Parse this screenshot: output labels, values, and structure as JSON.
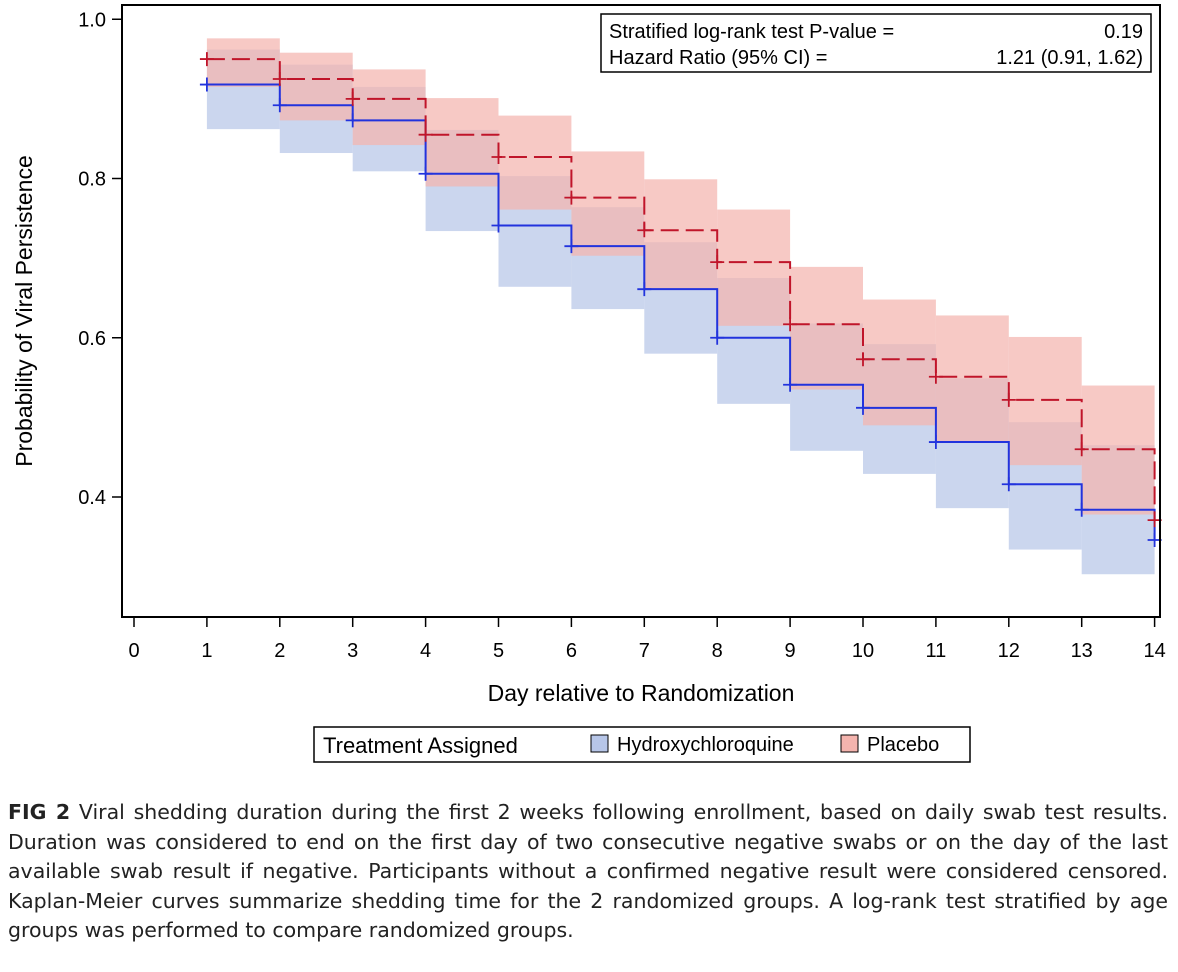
{
  "chart_data": {
    "type": "line",
    "subtype": "kaplan-meier-step",
    "xlabel": "Day relative to Randomization",
    "ylabel": "Probability of Viral Persistence",
    "xlim": [
      0,
      14
    ],
    "ylim": [
      0.25,
      1.0
    ],
    "xticks": [
      0,
      1,
      2,
      3,
      4,
      5,
      6,
      7,
      8,
      9,
      10,
      11,
      12,
      13,
      14
    ],
    "yticks": [
      0.4,
      0.6,
      0.8,
      1.0
    ],
    "ytick_labels": [
      "0.4",
      "0.6",
      "0.8",
      "1.0"
    ],
    "grid": false,
    "series": [
      {
        "name": "Hydroxychloroquine",
        "color": "#2233dd",
        "band_color": "#b7c6e8",
        "line_style": "solid",
        "x": [
          1,
          2,
          3,
          4,
          5,
          6,
          7,
          8,
          9,
          10,
          11,
          12,
          13,
          14
        ],
        "survival": [
          0.918,
          0.892,
          0.873,
          0.806,
          0.741,
          0.715,
          0.661,
          0.6,
          0.541,
          0.512,
          0.469,
          0.416,
          0.384,
          0.346
        ],
        "ci_lower": [
          0.862,
          0.832,
          0.809,
          0.734,
          0.664,
          0.636,
          0.58,
          0.517,
          0.458,
          0.429,
          0.386,
          0.334,
          0.303,
          0.262
        ],
        "ci_upper": [
          0.962,
          0.943,
          0.915,
          0.861,
          0.803,
          0.764,
          0.72,
          0.675,
          0.618,
          0.592,
          0.549,
          0.494,
          0.465,
          0.43
        ]
      },
      {
        "name": "Placebo",
        "color": "#c0152a",
        "band_color": "#f4b4ae",
        "line_style": "dashed",
        "x": [
          1,
          2,
          3,
          4,
          5,
          6,
          7,
          8,
          9,
          10,
          11,
          12,
          13,
          14
        ],
        "survival": [
          0.95,
          0.925,
          0.9,
          0.855,
          0.827,
          0.776,
          0.735,
          0.695,
          0.617,
          0.573,
          0.551,
          0.522,
          0.46,
          0.371
        ],
        "ci_lower": [
          0.915,
          0.873,
          0.842,
          0.79,
          0.761,
          0.703,
          0.661,
          0.615,
          0.535,
          0.49,
          0.47,
          0.44,
          0.378,
          0.3
        ],
        "ci_upper": [
          0.976,
          0.958,
          0.937,
          0.901,
          0.879,
          0.834,
          0.799,
          0.761,
          0.689,
          0.648,
          0.628,
          0.601,
          0.54,
          0.46
        ]
      }
    ],
    "inset_table": {
      "rows": [
        {
          "label": "Stratified log-rank test P-value =",
          "value": "0.19"
        },
        {
          "label": "Hazard Ratio (95% CI) =",
          "value": "1.21 (0.91, 1.62)"
        }
      ],
      "placement": "top-right"
    },
    "legend": {
      "title": "Treatment Assigned",
      "placement": "bottom-center"
    }
  },
  "caption": {
    "label": "FIG 2",
    "text": " Viral shedding duration during the first 2 weeks following enrollment, based on daily swab test results. Duration was considered to end on the first day of two consecutive negative swabs or on the day of the last available swab result if negative. Participants without a confirmed negative result were considered censored. Kaplan-Meier curves summarize shedding time for the 2 randomized groups. A log-rank test stratified by age groups was performed to compare randomized groups."
  }
}
